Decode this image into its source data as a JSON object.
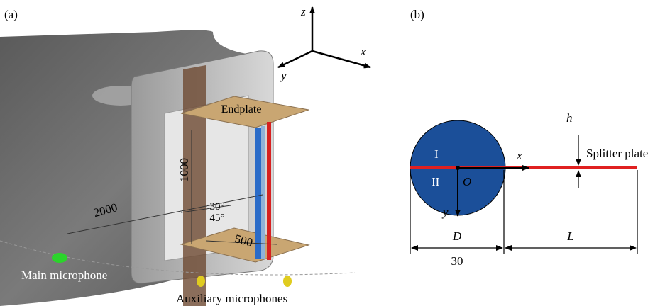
{
  "panel_a": {
    "label": "(a)",
    "axes": {
      "z": "z",
      "x": "x",
      "y": "y"
    },
    "endplate": "Endplate",
    "dimensions": {
      "height": "1000",
      "distance": "2000",
      "angle_small": "30°",
      "angle_large": "45°",
      "span": "500"
    },
    "main_microphone": "Main microphone",
    "auxiliary_microphones": "Auxiliary microphones"
  },
  "panel_b": {
    "label": "(b)",
    "regions": {
      "upper": "I",
      "lower": "II"
    },
    "origin": "O",
    "axes": {
      "x": "x",
      "y": "y"
    },
    "gap": "h",
    "splitter": "Splitter plate",
    "diameter": "D",
    "diameter_value": "30",
    "length": "L"
  }
}
